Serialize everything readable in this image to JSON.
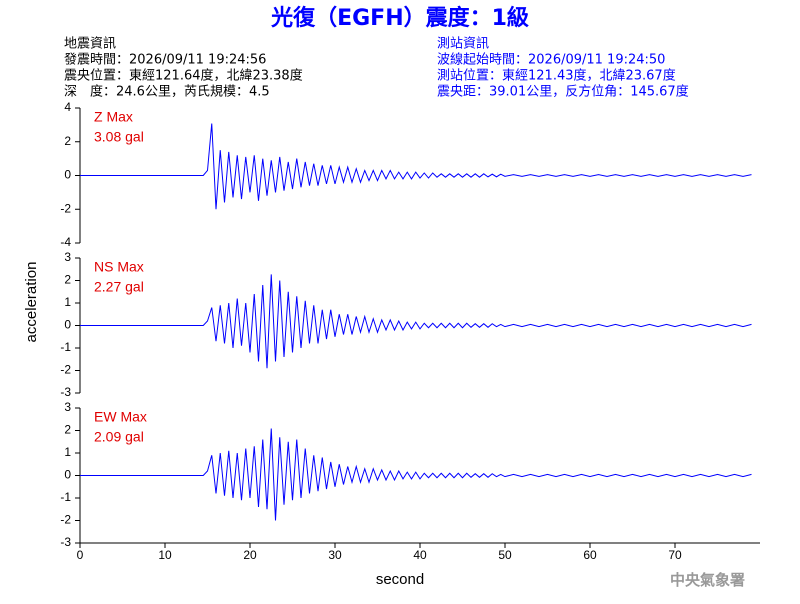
{
  "title": "光復（EGFH）震度：1級",
  "event_info": [
    "地震資訊",
    "發震時間：2026/09/11 19:24:56",
    "震央位置：東經121.64度，北緯23.38度",
    "深　度：24.6公里，芮氏規模：4.5"
  ],
  "station_info": [
    "測站資訊",
    "波線起始時間：2026/09/11 19:24:50",
    "測站位置：東經121.43度，北緯23.67度",
    "震央距：39.01公里，反方位角：145.67度"
  ],
  "ylabel": "acceleration",
  "footer": "中央氣象署",
  "chart_data": [
    {
      "type": "line",
      "annotations": [
        "Z Max",
        "3.08 gal"
      ],
      "color": "#0000ff",
      "xlim": [
        0,
        80
      ],
      "ylim": [
        -4,
        4
      ],
      "yticks": [
        -4,
        -2,
        0,
        2,
        4
      ],
      "x": [
        0,
        5,
        10,
        14.5,
        15,
        15.5,
        16,
        16.5,
        17,
        17.5,
        18,
        18.5,
        19,
        19.5,
        20,
        20.5,
        21,
        21.5,
        22,
        22.5,
        23,
        23.5,
        24,
        24.5,
        25,
        25.5,
        26,
        26.5,
        27,
        27.5,
        28,
        28.5,
        29,
        29.5,
        30,
        30.5,
        31,
        31.5,
        32,
        32.5,
        33,
        33.5,
        34,
        34.5,
        35,
        35.5,
        36,
        36.5,
        37,
        37.5,
        38,
        38.5,
        39,
        39.5,
        40,
        40.5,
        41,
        41.5,
        42,
        42.5,
        43,
        43.5,
        44,
        44.5,
        45,
        45.5,
        46,
        46.5,
        47,
        47.5,
        48,
        48.5,
        49,
        49.5,
        50,
        51,
        52,
        53,
        54,
        55,
        56,
        57,
        58,
        59,
        60,
        61,
        62,
        63,
        64,
        65,
        66,
        67,
        68,
        69,
        70,
        71,
        72,
        73,
        74,
        75,
        76,
        77,
        78,
        79
      ],
      "series": [
        {
          "values": [
            0,
            0,
            0,
            0,
            0.3,
            3.08,
            -2.0,
            1.5,
            -1.6,
            1.4,
            -1.3,
            1.2,
            -1.4,
            1.1,
            -1.0,
            1.2,
            -1.5,
            1.0,
            -1.2,
            0.9,
            -1.0,
            1.1,
            -0.9,
            0.8,
            -0.8,
            1.0,
            -0.7,
            0.8,
            -0.6,
            0.7,
            -0.6,
            0.6,
            -0.5,
            0.6,
            -0.5,
            0.5,
            -0.4,
            0.5,
            -0.4,
            0.4,
            -0.4,
            0.3,
            -0.3,
            0.3,
            -0.3,
            0.3,
            -0.2,
            0.3,
            -0.2,
            0.2,
            -0.2,
            0.2,
            -0.2,
            0.2,
            -0.15,
            0.15,
            -0.15,
            0.15,
            -0.1,
            0.1,
            -0.1,
            0.1,
            -0.1,
            0.1,
            -0.1,
            0.1,
            -0.1,
            0.1,
            -0.1,
            0.1,
            -0.08,
            0.08,
            -0.08,
            0.08,
            -0.05,
            0.05,
            -0.05,
            0.05,
            -0.05,
            0.05,
            -0.05,
            0.05,
            -0.05,
            0.05,
            -0.05,
            0.05,
            -0.05,
            0.05,
            -0.05,
            0.05,
            -0.05,
            0.05,
            -0.05,
            0.05,
            -0.05,
            0.05,
            -0.05,
            0.05,
            -0.05,
            0.05,
            -0.05,
            0.05,
            -0.05,
            0.05
          ]
        }
      ]
    },
    {
      "type": "line",
      "annotations": [
        "NS Max",
        "2.27 gal"
      ],
      "color": "#0000ff",
      "xlim": [
        0,
        80
      ],
      "ylim": [
        -3,
        3
      ],
      "yticks": [
        -3,
        -2,
        -1,
        0,
        1,
        2,
        3
      ],
      "x": [
        0,
        5,
        10,
        14.5,
        15,
        15.5,
        16,
        16.5,
        17,
        17.5,
        18,
        18.5,
        19,
        19.5,
        20,
        20.5,
        21,
        21.5,
        22,
        22.5,
        23,
        23.5,
        24,
        24.5,
        25,
        25.5,
        26,
        26.5,
        27,
        27.5,
        28,
        28.5,
        29,
        29.5,
        30,
        30.5,
        31,
        31.5,
        32,
        32.5,
        33,
        33.5,
        34,
        34.5,
        35,
        35.5,
        36,
        36.5,
        37,
        37.5,
        38,
        38.5,
        39,
        39.5,
        40,
        40.5,
        41,
        41.5,
        42,
        42.5,
        43,
        43.5,
        44,
        44.5,
        45,
        45.5,
        46,
        46.5,
        47,
        47.5,
        48,
        48.5,
        49,
        49.5,
        50,
        51,
        52,
        53,
        54,
        55,
        56,
        57,
        58,
        59,
        60,
        61,
        62,
        63,
        64,
        65,
        66,
        67,
        68,
        69,
        70,
        71,
        72,
        73,
        74,
        75,
        76,
        77,
        78,
        79
      ],
      "series": [
        {
          "values": [
            0,
            0,
            0,
            0,
            0.2,
            0.8,
            -0.7,
            0.9,
            -0.8,
            1.0,
            -1.0,
            1.2,
            -0.9,
            1.0,
            -1.2,
            1.4,
            -1.6,
            1.8,
            -1.9,
            2.27,
            -1.6,
            2.0,
            -1.4,
            1.5,
            -1.2,
            1.3,
            -1.0,
            1.1,
            -0.8,
            0.9,
            -0.8,
            0.7,
            -0.6,
            0.7,
            -0.5,
            0.5,
            -0.4,
            0.5,
            -0.4,
            0.4,
            -0.3,
            0.4,
            -0.3,
            0.3,
            -0.3,
            0.25,
            -0.2,
            0.25,
            -0.2,
            0.2,
            -0.2,
            0.15,
            -0.15,
            0.15,
            -0.15,
            0.1,
            -0.1,
            0.1,
            -0.1,
            0.1,
            -0.1,
            0.1,
            -0.1,
            0.1,
            -0.1,
            0.1,
            -0.08,
            0.08,
            -0.08,
            0.08,
            -0.08,
            0.08,
            -0.05,
            0.05,
            -0.05,
            0.05,
            -0.05,
            0.05,
            -0.05,
            0.05,
            -0.05,
            0.05,
            -0.05,
            0.05,
            -0.05,
            0.05,
            -0.05,
            0.05,
            -0.05,
            0.05,
            -0.05,
            0.05,
            -0.05,
            0.05,
            -0.05,
            0.05,
            -0.05,
            0.05,
            -0.05,
            0.05,
            -0.05,
            0.05,
            -0.05,
            0.05
          ]
        }
      ]
    },
    {
      "type": "line",
      "annotations": [
        "EW Max",
        "2.09 gal"
      ],
      "color": "#0000ff",
      "xlabel": "second",
      "xlim": [
        0,
        80
      ],
      "xticks": [
        0,
        10,
        20,
        30,
        40,
        50,
        60,
        70
      ],
      "ylim": [
        -3,
        3
      ],
      "yticks": [
        -3,
        -2,
        -1,
        0,
        1,
        2,
        3
      ],
      "x": [
        0,
        5,
        10,
        14.5,
        15,
        15.5,
        16,
        16.5,
        17,
        17.5,
        18,
        18.5,
        19,
        19.5,
        20,
        20.5,
        21,
        21.5,
        22,
        22.5,
        23,
        23.5,
        24,
        24.5,
        25,
        25.5,
        26,
        26.5,
        27,
        27.5,
        28,
        28.5,
        29,
        29.5,
        30,
        30.5,
        31,
        31.5,
        32,
        32.5,
        33,
        33.5,
        34,
        34.5,
        35,
        35.5,
        36,
        36.5,
        37,
        37.5,
        38,
        38.5,
        39,
        39.5,
        40,
        40.5,
        41,
        41.5,
        42,
        42.5,
        43,
        43.5,
        44,
        44.5,
        45,
        45.5,
        46,
        46.5,
        47,
        47.5,
        48,
        48.5,
        49,
        49.5,
        50,
        51,
        52,
        53,
        54,
        55,
        56,
        57,
        58,
        59,
        60,
        61,
        62,
        63,
        64,
        65,
        66,
        67,
        68,
        69,
        70,
        71,
        72,
        73,
        74,
        75,
        76,
        77,
        78,
        79
      ],
      "series": [
        {
          "values": [
            0,
            0,
            0,
            0,
            0.2,
            0.9,
            -0.8,
            1.0,
            -0.9,
            1.1,
            -1.0,
            1.0,
            -1.1,
            1.2,
            -1.0,
            1.3,
            -1.4,
            1.6,
            -1.5,
            2.09,
            -2.0,
            1.7,
            -1.3,
            1.5,
            -1.1,
            1.6,
            -1.0,
            1.2,
            -0.8,
            0.9,
            -0.7,
            0.8,
            -0.6,
            0.6,
            -0.5,
            0.5,
            -0.4,
            0.4,
            -0.3,
            0.4,
            -0.3,
            0.3,
            -0.3,
            0.3,
            -0.2,
            0.25,
            -0.2,
            0.2,
            -0.2,
            0.2,
            -0.15,
            0.15,
            -0.15,
            0.15,
            -0.15,
            0.1,
            -0.1,
            0.1,
            -0.1,
            0.1,
            -0.1,
            0.1,
            -0.1,
            0.1,
            -0.1,
            0.1,
            -0.08,
            0.08,
            -0.08,
            0.08,
            -0.08,
            0.08,
            -0.05,
            0.05,
            -0.05,
            0.05,
            -0.05,
            0.05,
            -0.05,
            0.05,
            -0.05,
            0.05,
            -0.05,
            0.05,
            -0.05,
            0.05,
            -0.05,
            0.05,
            -0.05,
            0.05,
            -0.05,
            0.05,
            -0.05,
            0.05,
            -0.05,
            0.05,
            -0.05,
            0.05,
            -0.05,
            0.05,
            -0.05,
            0.05,
            -0.05,
            0.05
          ]
        }
      ]
    }
  ]
}
